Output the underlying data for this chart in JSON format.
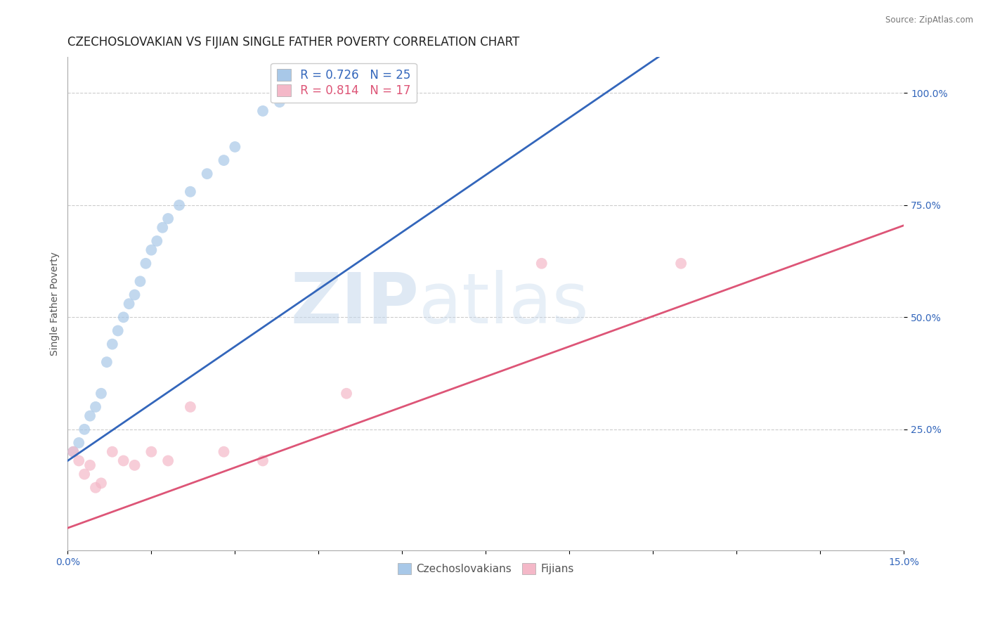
{
  "title": "CZECHOSLOVAKIAN VS FIJIAN SINGLE FATHER POVERTY CORRELATION CHART",
  "source": "Source: ZipAtlas.com",
  "ylabel": "Single Father Poverty",
  "xlim": [
    0.0,
    0.15
  ],
  "ylim": [
    -0.02,
    1.08
  ],
  "yticks": [
    0.25,
    0.5,
    0.75,
    1.0
  ],
  "ytick_labels": [
    "25.0%",
    "50.0%",
    "75.0%",
    "100.0%"
  ],
  "legend_r_czech": "R = 0.726",
  "legend_n_czech": "N = 25",
  "legend_r_fijian": "R = 0.814",
  "legend_n_fijian": "N = 17",
  "czech_color": "#a8c8e8",
  "czech_line_color": "#3366bb",
  "fijian_color": "#f4b8c8",
  "fijian_line_color": "#dd5577",
  "czech_scatter_x": [
    0.001,
    0.002,
    0.003,
    0.004,
    0.005,
    0.006,
    0.007,
    0.008,
    0.009,
    0.01,
    0.011,
    0.012,
    0.013,
    0.014,
    0.015,
    0.016,
    0.017,
    0.018,
    0.02,
    0.022,
    0.025,
    0.028,
    0.03,
    0.035,
    0.038
  ],
  "czech_scatter_y": [
    0.2,
    0.22,
    0.25,
    0.28,
    0.3,
    0.33,
    0.4,
    0.44,
    0.47,
    0.5,
    0.53,
    0.55,
    0.58,
    0.62,
    0.65,
    0.67,
    0.7,
    0.72,
    0.75,
    0.78,
    0.82,
    0.85,
    0.88,
    0.96,
    0.98
  ],
  "fijian_scatter_x": [
    0.001,
    0.002,
    0.003,
    0.004,
    0.005,
    0.006,
    0.008,
    0.01,
    0.012,
    0.015,
    0.018,
    0.022,
    0.028,
    0.035,
    0.05,
    0.085,
    0.11
  ],
  "fijian_scatter_y": [
    0.2,
    0.18,
    0.15,
    0.17,
    0.12,
    0.13,
    0.2,
    0.18,
    0.17,
    0.2,
    0.18,
    0.3,
    0.2,
    0.18,
    0.33,
    0.62,
    0.62
  ],
  "watermark_zip": "ZIP",
  "watermark_atlas": "atlas",
  "background_color": "#ffffff",
  "grid_color": "#cccccc",
  "title_fontsize": 12,
  "axis_fontsize": 10,
  "tick_fontsize": 10,
  "legend_fontsize": 12,
  "marker_size": 130,
  "czech_line_forced_slope": 8.5,
  "czech_line_forced_intercept": 0.18,
  "fijian_line_forced_slope": 4.5,
  "fijian_line_forced_intercept": 0.03
}
